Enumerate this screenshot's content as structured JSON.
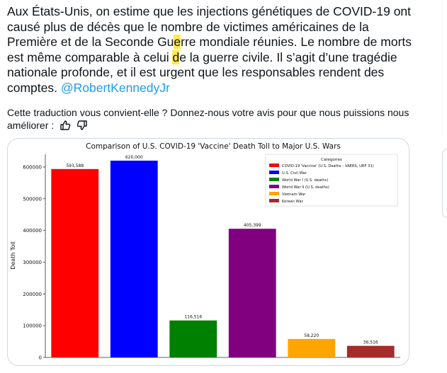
{
  "tweet": {
    "text_before": "Aux États-Unis, on estime que les injections génétiques de COVID-19 ont causé plus de décès que le nombre de victimes américaines de la Première et de la Seconde Gu",
    "hl1": "e",
    "text_mid": "rre mondiale réunies. Le nombre de morts est même comparable à celui ",
    "hl2": "d",
    "text_after": "e la guerre civile. Il s’agit d’une tragédie nationale profonde, et il est urgent que les responsables rendent des comptes. ",
    "mention": "@RobertKennedyJr"
  },
  "translation_feedback": {
    "prompt": "Cette traduction vous convient-elle ? Donnez-nous votre avis pour que nous puissions nous améliorer :",
    "like_icon": "thumbs-up-icon",
    "dislike_icon": "thumbs-down-icon"
  },
  "chart_data": {
    "type": "bar",
    "title": "Comparison of U.S. COVID-19 'Vaccine' Death Toll to Major U.S. Wars",
    "ylabel": "Death Toll",
    "xlabel": "",
    "ylim": [
      0,
      640000
    ],
    "yticks": [
      0,
      100000,
      200000,
      300000,
      400000,
      500000,
      600000
    ],
    "grid": false,
    "legend_title": "Categories",
    "legend_position": "top-right",
    "categories": [
      "COVID-19 'Vaccine' (U.S. Deaths - VAERS, URF 31)",
      "U.S. Civil War",
      "World War I (U.S. deaths)",
      "World War II (U.S. deaths)",
      "Vietnam War",
      "Korean War"
    ],
    "values": [
      593588,
      620000,
      116516,
      405399,
      58220,
      36516
    ],
    "value_labels": [
      "593,588",
      "620,000",
      "116,516",
      "405,399",
      "58,220",
      "36,516"
    ],
    "colors": [
      "#ff0000",
      "#0000ff",
      "#008000",
      "#800080",
      "#ffa500",
      "#a52a2a"
    ]
  }
}
